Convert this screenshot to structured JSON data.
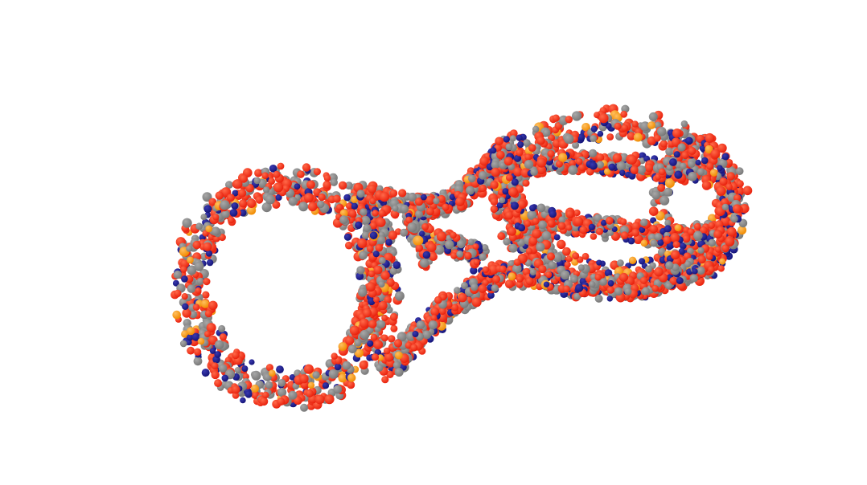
{
  "scene": {
    "subject": "dna-origami-figure-eight-space-filling-model",
    "background_color": "#ffffff",
    "colors": {
      "oxygen": "#e8200c",
      "oxygen_highlight": "#ff6a4a",
      "carbon": "#777777",
      "carbon_highlight": "#a8a8a8",
      "nitrogen": "#141478",
      "nitrogen_highlight": "#3a3ab0",
      "phosphorus": "#f08a00"
    }
  }
}
